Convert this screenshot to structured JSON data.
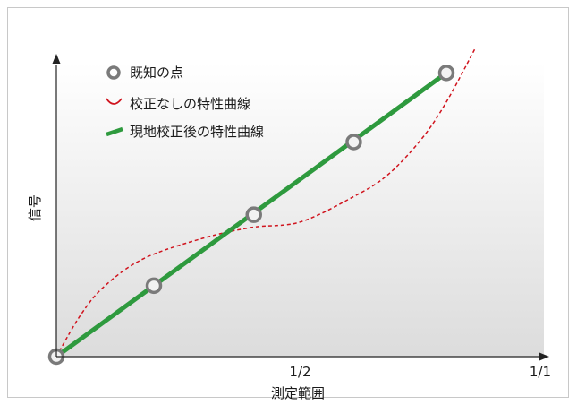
{
  "chart_data": {
    "type": "line",
    "xlabel": "測定範囲",
    "ylabel": "信号",
    "xlim": [
      0,
      1
    ],
    "ylim": [
      0,
      1
    ],
    "x_ticks": [
      {
        "value": 0.5,
        "label": "1/2"
      },
      {
        "value": 1.0,
        "label": "1/1"
      }
    ],
    "legend_position": "top-left",
    "series": [
      {
        "name": "既知の点",
        "kind": "markers",
        "color": "#7a7a7a",
        "points": [
          [
            0.0,
            0.0
          ],
          [
            0.2,
            0.195
          ],
          [
            0.405,
            0.39
          ],
          [
            0.61,
            0.59
          ],
          [
            0.8,
            0.78
          ]
        ]
      },
      {
        "name": "校正なしの特性曲線",
        "kind": "dashed-curve",
        "color": "#d0141e",
        "points": [
          [
            0.0,
            0.0
          ],
          [
            0.05,
            0.115
          ],
          [
            0.1,
            0.195
          ],
          [
            0.18,
            0.27
          ],
          [
            0.3,
            0.325
          ],
          [
            0.4,
            0.355
          ],
          [
            0.5,
            0.37
          ],
          [
            0.61,
            0.44
          ],
          [
            0.68,
            0.5
          ],
          [
            0.75,
            0.6
          ],
          [
            0.8,
            0.7
          ],
          [
            0.86,
            0.85
          ]
        ]
      },
      {
        "name": "現地校正後の特性曲線",
        "kind": "solid-line",
        "color": "#2e9a3e",
        "points": [
          [
            0.0,
            0.0
          ],
          [
            0.8,
            0.78
          ]
        ]
      }
    ]
  }
}
